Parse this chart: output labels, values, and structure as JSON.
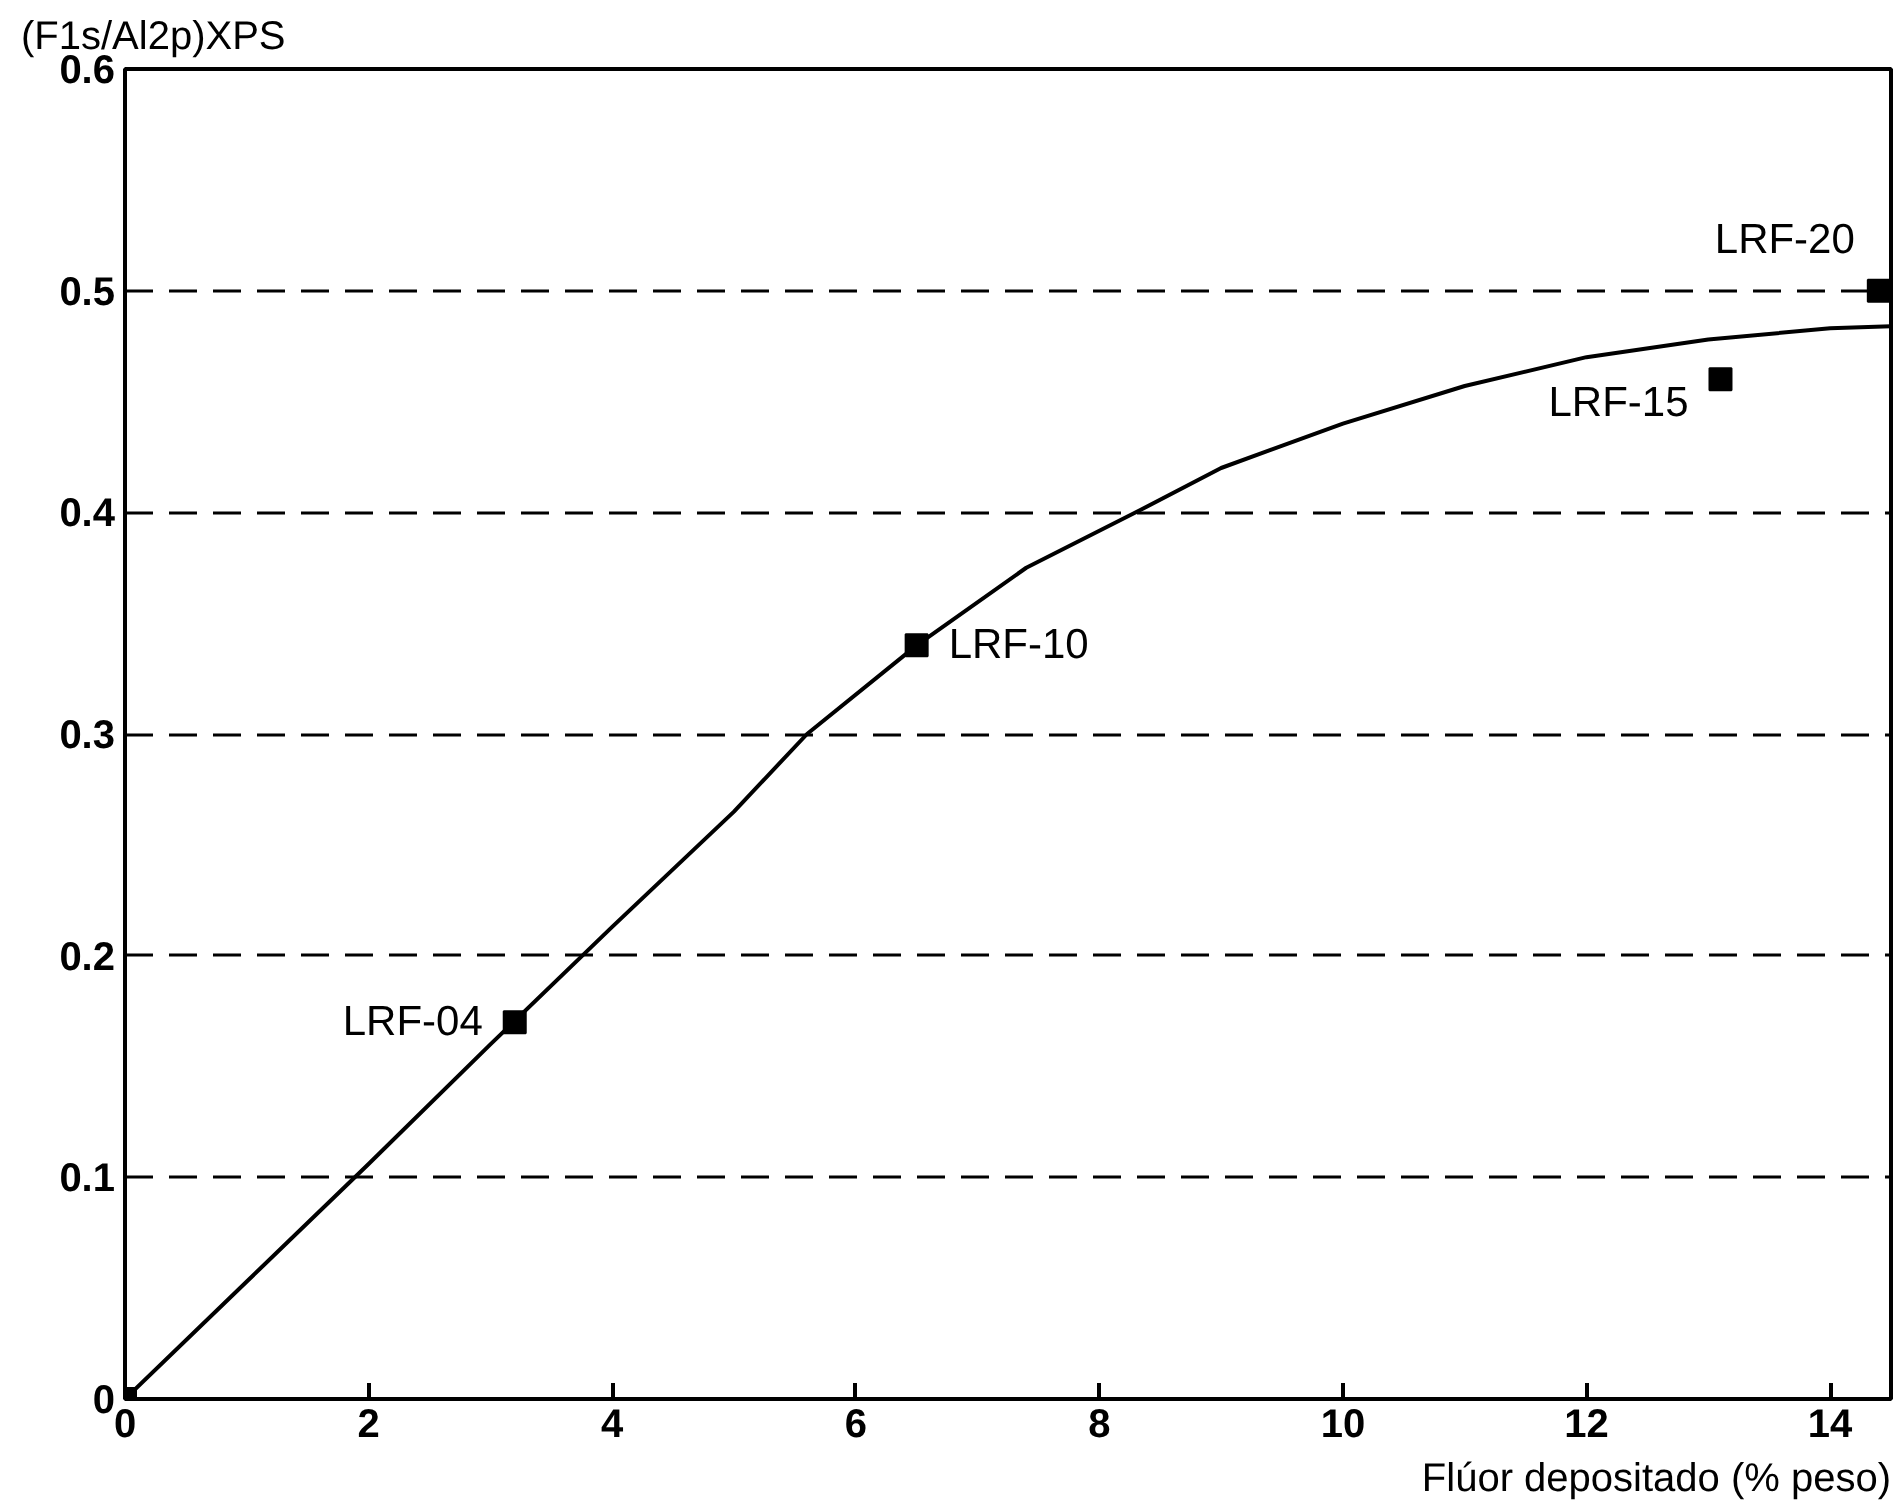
{
  "chart_data": {
    "type": "scatter",
    "xlabel": "Flúor depositado (% peso)",
    "ylabel": "(F1s/Al2p)XPS",
    "xlim": [
      0,
      14.5
    ],
    "ylim": [
      0,
      0.6
    ],
    "xticks": [
      0,
      2,
      4,
      6,
      8,
      10,
      12,
      14
    ],
    "yticks": [
      0,
      0.1,
      0.2,
      0.3,
      0.4,
      0.5,
      0.6
    ],
    "grid": "y",
    "series": [
      {
        "marker": "square",
        "color": "#000000",
        "x": [
          0,
          3.2,
          6.5,
          13.1,
          14.4
        ],
        "values": [
          0,
          0.17,
          0.34,
          0.46,
          0.5
        ]
      },
      {
        "type": "line",
        "color": "#000000",
        "line_style": "solid",
        "x": [
          0,
          1,
          2,
          3,
          4,
          5,
          5.6,
          6.5,
          7.4,
          8.3,
          9,
          10,
          11,
          12,
          13,
          14,
          14.5
        ],
        "values": [
          0,
          0.053,
          0.106,
          0.16,
          0.213,
          0.265,
          0.3,
          0.34,
          0.375,
          0.4,
          0.42,
          0.44,
          0.457,
          0.47,
          0.478,
          0.483,
          0.484
        ]
      }
    ],
    "annotations": [
      {
        "text": "LRF-04",
        "x": 3.2,
        "y": 0.17
      },
      {
        "text": "LRF-10",
        "x": 6.5,
        "y": 0.34
      },
      {
        "text": "LRF-15",
        "x": 13.1,
        "y": 0.46
      },
      {
        "text": "LRF-20",
        "x": 14.4,
        "y": 0.5
      }
    ]
  }
}
